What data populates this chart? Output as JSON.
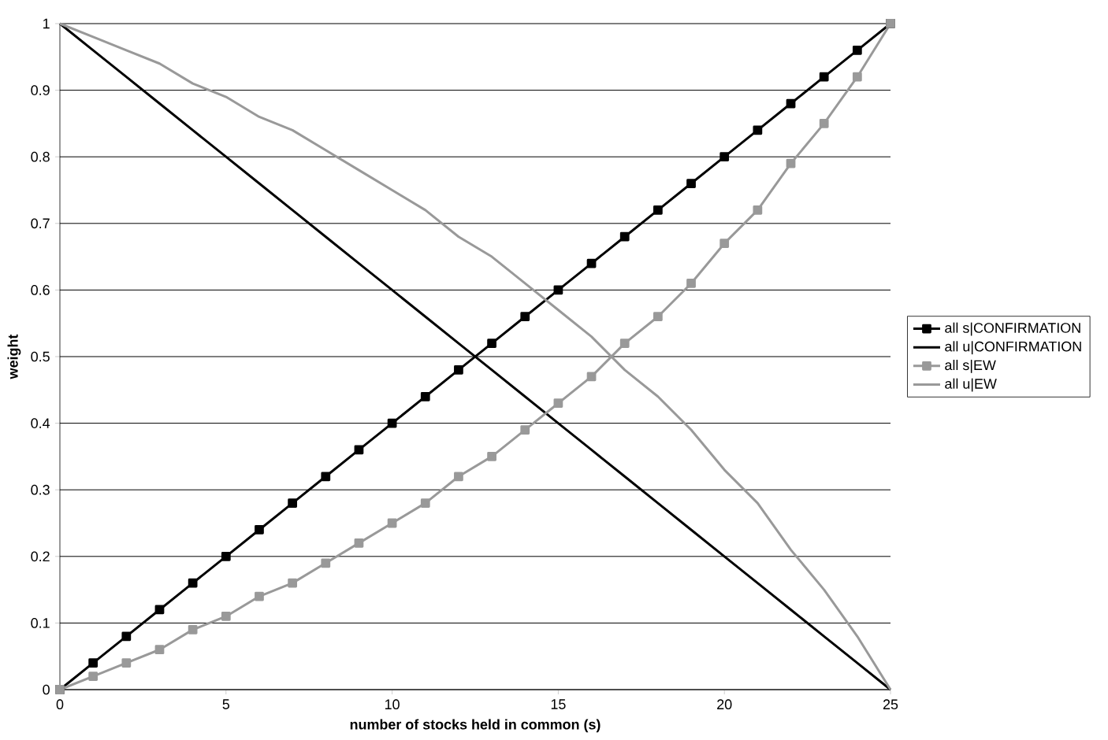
{
  "chart_data": {
    "type": "line",
    "xlabel": "number of stocks held in common (s)",
    "ylabel": "weight",
    "x": [
      0,
      1,
      2,
      3,
      4,
      5,
      6,
      7,
      8,
      9,
      10,
      11,
      12,
      13,
      14,
      15,
      16,
      17,
      18,
      19,
      20,
      21,
      22,
      23,
      24,
      25
    ],
    "series": [
      {
        "name": "all s|CONFIRMATION",
        "color": "#000000",
        "marker": "square",
        "values": [
          0,
          0.04,
          0.08,
          0.12,
          0.16,
          0.2,
          0.24,
          0.28,
          0.32,
          0.36,
          0.4,
          0.44,
          0.48,
          0.52,
          0.56,
          0.6,
          0.64,
          0.68,
          0.72,
          0.76,
          0.8,
          0.84,
          0.88,
          0.92,
          0.96,
          1
        ]
      },
      {
        "name": "all u|CONFIRMATION",
        "color": "#000000",
        "marker": "none",
        "values": [
          1,
          0.96,
          0.92,
          0.88,
          0.84,
          0.8,
          0.76,
          0.72,
          0.68,
          0.64,
          0.6,
          0.56,
          0.52,
          0.48,
          0.44,
          0.4,
          0.36,
          0.32,
          0.28,
          0.24,
          0.2,
          0.16,
          0.12,
          0.08,
          0.04,
          0
        ]
      },
      {
        "name": "all s|EW",
        "color": "#999999",
        "marker": "square",
        "values": [
          0,
          0.02,
          0.04,
          0.06,
          0.09,
          0.11,
          0.14,
          0.16,
          0.19,
          0.22,
          0.25,
          0.28,
          0.32,
          0.35,
          0.39,
          0.43,
          0.47,
          0.52,
          0.56,
          0.61,
          0.67,
          0.72,
          0.79,
          0.85,
          0.92,
          1
        ]
      },
      {
        "name": "all u|EW",
        "color": "#999999",
        "marker": "none",
        "values": [
          1,
          0.98,
          0.96,
          0.94,
          0.91,
          0.89,
          0.86,
          0.84,
          0.81,
          0.78,
          0.75,
          0.72,
          0.68,
          0.65,
          0.61,
          0.57,
          0.53,
          0.48,
          0.44,
          0.39,
          0.33,
          0.28,
          0.21,
          0.15,
          0.08,
          0
        ]
      }
    ],
    "xlim": [
      0,
      25
    ],
    "xticks": [
      0,
      5,
      10,
      15,
      20,
      25
    ],
    "ylim": [
      0,
      1
    ],
    "yticks": [
      0,
      0.1,
      0.2,
      0.3,
      0.4,
      0.5,
      0.6,
      0.7,
      0.8,
      0.9,
      1
    ],
    "grid": "y",
    "legend": "right"
  }
}
